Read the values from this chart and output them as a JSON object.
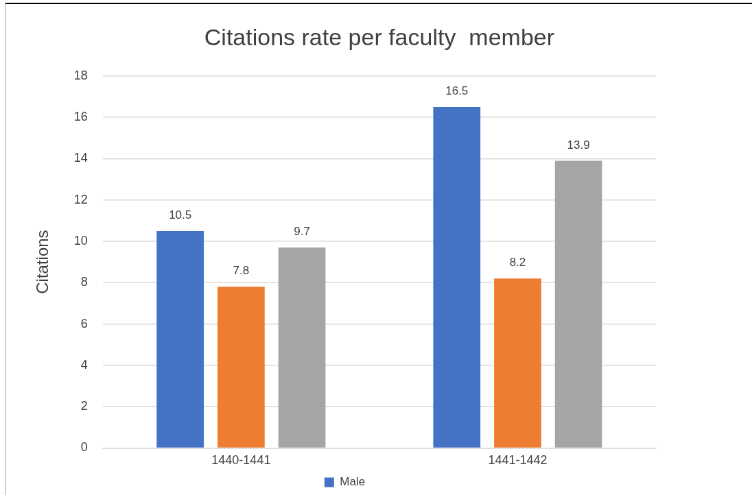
{
  "chart_data": {
    "type": "bar",
    "title": "Citations rate per faculty  member",
    "ylabel": "Citations",
    "categories": [
      "1440-1441",
      "1441-1442"
    ],
    "series": [
      {
        "name": "Male",
        "color": "#4472c4",
        "values": [
          10.5,
          16.5
        ]
      },
      {
        "color": "#ed7d31",
        "values": [
          7.8,
          8.2
        ]
      },
      {
        "color": "#a5a5a5",
        "values": [
          9.7,
          13.9
        ]
      }
    ],
    "ylim": [
      0,
      18
    ],
    "yticks": [
      0,
      2,
      4,
      6,
      8,
      10,
      12,
      14,
      16,
      18
    ],
    "grid": "y",
    "legend": "bottom",
    "data_labels": true
  }
}
